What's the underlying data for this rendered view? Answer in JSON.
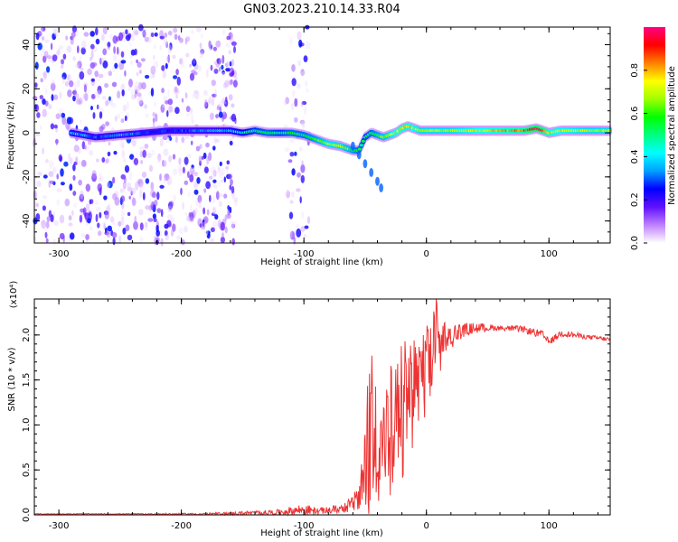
{
  "title": "GN03.2023.210.14.33.R04",
  "chart_data": [
    {
      "type": "heatmap",
      "xlabel": "Height of straight line (km)",
      "ylabel": "Frequency (Hz)",
      "xlim": [
        -320,
        150
      ],
      "ylim": [
        -50,
        48
      ],
      "xticks": [
        -300,
        -200,
        -100,
        0,
        100
      ],
      "yticks": [
        -40,
        -20,
        0,
        20,
        40
      ],
      "colorbar": {
        "label": "Normalized spectral amplitude",
        "range": [
          0,
          1
        ],
        "ticks": [
          "0.0",
          "0.2",
          "0.4",
          "0.6",
          "0.8"
        ],
        "colormap": [
          "#ffffff",
          "#c080ff",
          "#6010ff",
          "#0000ff",
          "#00a0ff",
          "#00ffff",
          "#00ff80",
          "#00ff00",
          "#a0ff00",
          "#ffff00",
          "#ff8000",
          "#ff0000",
          "#ff0080"
        ]
      },
      "ridge": {
        "x": [
          -290,
          -270,
          -250,
          -230,
          -210,
          -160,
          -150,
          -140,
          -130,
          -120,
          -110,
          -100,
          -90,
          -80,
          -70,
          -60,
          -55,
          -50,
          -45,
          -40,
          -35,
          -30,
          -25,
          -20,
          -15,
          -10,
          -5,
          0,
          10,
          20,
          40,
          60,
          80,
          90,
          95,
          100,
          110,
          130,
          150
        ],
        "y": [
          0,
          -2,
          -1,
          0,
          1,
          1,
          0,
          1,
          0,
          0,
          0,
          -1,
          -3,
          -5,
          -6,
          -8,
          -8,
          -2,
          0,
          -1,
          -2,
          -1,
          0,
          2,
          3,
          2,
          1,
          1,
          1,
          1,
          1,
          1,
          1,
          2,
          1,
          0,
          1,
          1,
          1
        ],
        "amplitude": [
          0.4,
          0.3,
          0.35,
          0.3,
          0.25,
          0.4,
          0.45,
          0.5,
          0.55,
          0.5,
          0.55,
          0.55,
          0.6,
          0.7,
          0.7,
          0.6,
          0.55,
          0.5,
          0.55,
          0.6,
          0.65,
          0.7,
          0.75,
          0.8,
          0.8,
          0.75,
          0.7,
          0.7,
          0.7,
          0.7,
          0.75,
          0.8,
          0.85,
          0.95,
          0.9,
          0.8,
          0.75,
          0.7,
          0.7
        ]
      },
      "tail": {
        "x": [
          -60,
          -55,
          -50,
          -45,
          -40,
          -37
        ],
        "y": [
          -6,
          -10,
          -14,
          -18,
          -22,
          -25
        ],
        "amplitude": 0.3
      },
      "noise_regions": [
        {
          "x_range": [
            -320,
            -155
          ],
          "density": 0.8
        },
        {
          "x_range": [
            -115,
            -95
          ],
          "density": 0.5
        }
      ]
    },
    {
      "type": "line",
      "xlabel": "Height of straight line (km)",
      "ylabel": "SNR (10 * v/v)",
      "y_scale_label": "(x10⁴)",
      "xlim": [
        -320,
        150
      ],
      "ylim": [
        0,
        2.4
      ],
      "xticks": [
        -300,
        -200,
        -100,
        0,
        100
      ],
      "yticks": [
        "0.0",
        "0.5",
        "1.0",
        "1.5",
        "2.0"
      ],
      "color": "#ee3333",
      "series": [
        {
          "x": [
            -320,
            -250,
            -180,
            -150,
            -120,
            -100,
            -90,
            -80,
            -70,
            -60,
            -55,
            -50,
            -45,
            -40,
            -35,
            -30,
            -25,
            -20,
            -15,
            -10,
            -5,
            0,
            5,
            8,
            10,
            15,
            20,
            30,
            40,
            60,
            80,
            95,
            100,
            110,
            130,
            150
          ],
          "y": [
            0.01,
            0.01,
            0.01,
            0.02,
            0.03,
            0.06,
            0.04,
            0.05,
            0.07,
            0.12,
            0.2,
            0.4,
            0.8,
            1.0,
            0.9,
            0.8,
            1.0,
            1.2,
            1.4,
            1.5,
            1.6,
            1.7,
            1.8,
            2.45,
            1.9,
            1.9,
            2.0,
            2.05,
            2.08,
            2.08,
            2.06,
            2.0,
            1.92,
            2.02,
            1.98,
            1.95
          ],
          "envelope_high": [
            0.01,
            0.01,
            0.02,
            0.04,
            0.06,
            0.14,
            0.07,
            0.08,
            0.12,
            0.2,
            0.35,
            1.1,
            1.95,
            1.6,
            1.85,
            1.7,
            1.75,
            1.9,
            2.0,
            2.05,
            2.0,
            2.1,
            2.2,
            2.45,
            2.3,
            2.2,
            2.15,
            2.1,
            2.12,
            2.1,
            2.1,
            2.05,
            1.95,
            2.06,
            2.0,
            1.97
          ],
          "envelope_low": [
            0.0,
            0.0,
            0.0,
            0.0,
            0.0,
            0.0,
            0.0,
            0.0,
            0.02,
            0.02,
            0.0,
            0.0,
            0.0,
            0.1,
            0.02,
            0.1,
            0.2,
            0.3,
            0.6,
            0.8,
            1.0,
            1.1,
            1.4,
            1.6,
            1.5,
            1.7,
            1.85,
            1.95,
            2.0,
            2.05,
            2.02,
            1.96,
            1.88,
            1.98,
            1.95,
            1.92
          ]
        }
      ]
    }
  ]
}
